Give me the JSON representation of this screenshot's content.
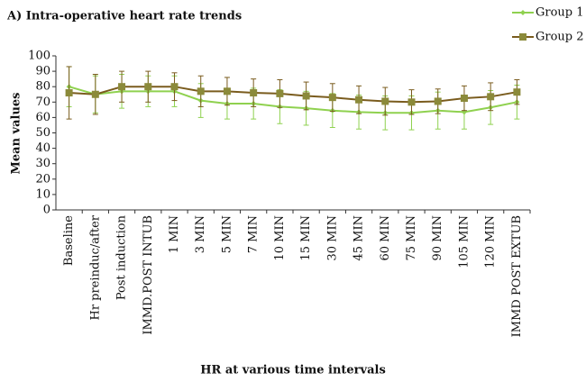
{
  "chart_data": {
    "type": "line",
    "title": "A) Intra-operative heart rate trends",
    "ylabel": "Mean values",
    "xlabel": "HR at various time intervals",
    "categories": [
      "Baseline",
      "Hr preinduc/after",
      "Post induction",
      "IMMD.POST INTUB",
      "1 MIN",
      "3 MIN",
      "5 MIN",
      "7 MIN",
      "10 MIN",
      "15 MIN",
      "30 MIN",
      "45 MIN",
      "60 MIN",
      "75 MIN",
      "90 MIN",
      "105 MIN",
      "120 MIN",
      "IMMD POST EXTUB"
    ],
    "series": [
      {
        "name": "Group 1",
        "color": "#8fd14f",
        "values": [
          80,
          75,
          77,
          77,
          77,
          71,
          69,
          69,
          67,
          66,
          64.5,
          63.5,
          63,
          63,
          64.5,
          63.5,
          66.5,
          70
        ],
        "errors": [
          13,
          12,
          11,
          10,
          10,
          11,
          10,
          10,
          11,
          11,
          11,
          11,
          11,
          11,
          12,
          11,
          11,
          11
        ]
      },
      {
        "name": "Group 2",
        "color": "#7a5c1e",
        "values": [
          76,
          75,
          80,
          80,
          80,
          77,
          77,
          76,
          75.5,
          74,
          73,
          71.5,
          70.5,
          70,
          70.5,
          72.5,
          73.5,
          76.5
        ],
        "errors": [
          17,
          13,
          10,
          10,
          9,
          10,
          9,
          9,
          9,
          9,
          9,
          9,
          9,
          8,
          8,
          8,
          9,
          8
        ]
      }
    ],
    "ylim": [
      0,
      100
    ],
    "yticks": [
      0,
      10,
      20,
      30,
      40,
      50,
      60,
      70,
      80,
      90,
      100
    ],
    "grid": false
  }
}
